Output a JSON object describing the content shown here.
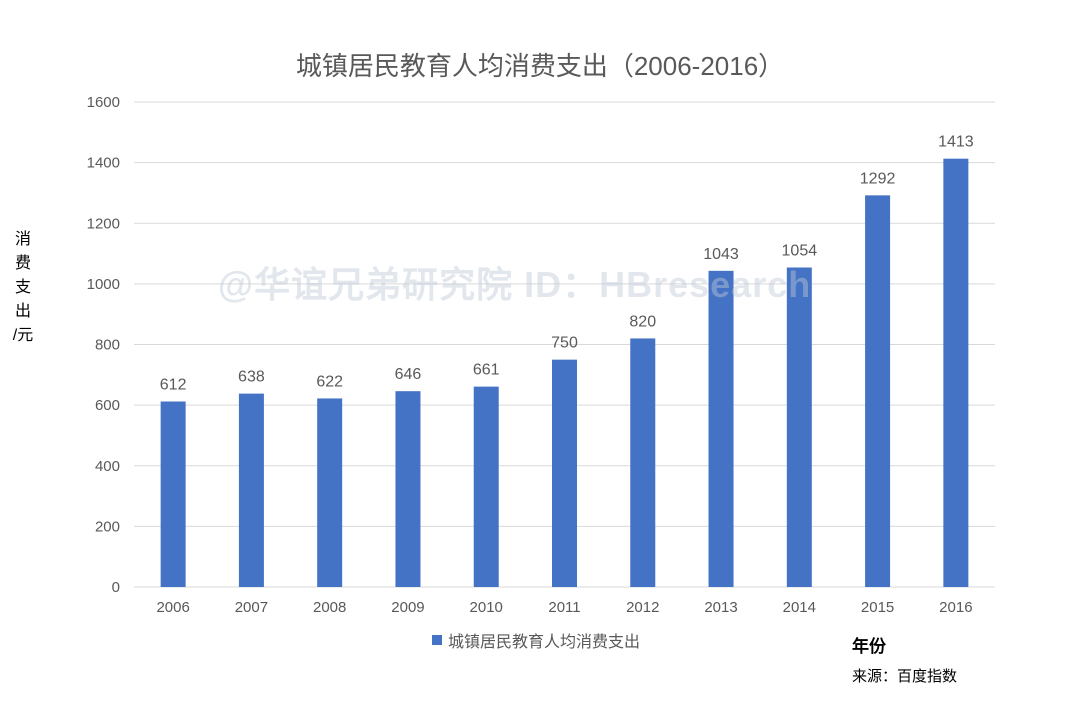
{
  "chart_data": {
    "type": "bar",
    "title": "城镇居民教育人均消费支出（2006-2016）",
    "ylabel": "消费支出/元",
    "xlabel": "年份",
    "categories": [
      "2006",
      "2007",
      "2008",
      "2009",
      "2010",
      "2011",
      "2012",
      "2013",
      "2014",
      "2015",
      "2016"
    ],
    "series": [
      {
        "name": "城镇居民教育人均消费支出",
        "values": [
          612,
          638,
          622,
          646,
          661,
          750,
          820,
          1043,
          1054,
          1292,
          1413
        ]
      }
    ],
    "ylim": [
      0,
      1600
    ],
    "yticks": [
      0,
      200,
      400,
      600,
      800,
      1000,
      1200,
      1400,
      1600
    ],
    "grid": true,
    "legend": "bottom-center"
  },
  "colors": {
    "bar": "#4472C4",
    "grid": "#D9D9D9",
    "tick_text": "#595959"
  },
  "source": "来源：百度指数",
  "watermark": "@华谊兄弟研究院 ID：HBresearch"
}
